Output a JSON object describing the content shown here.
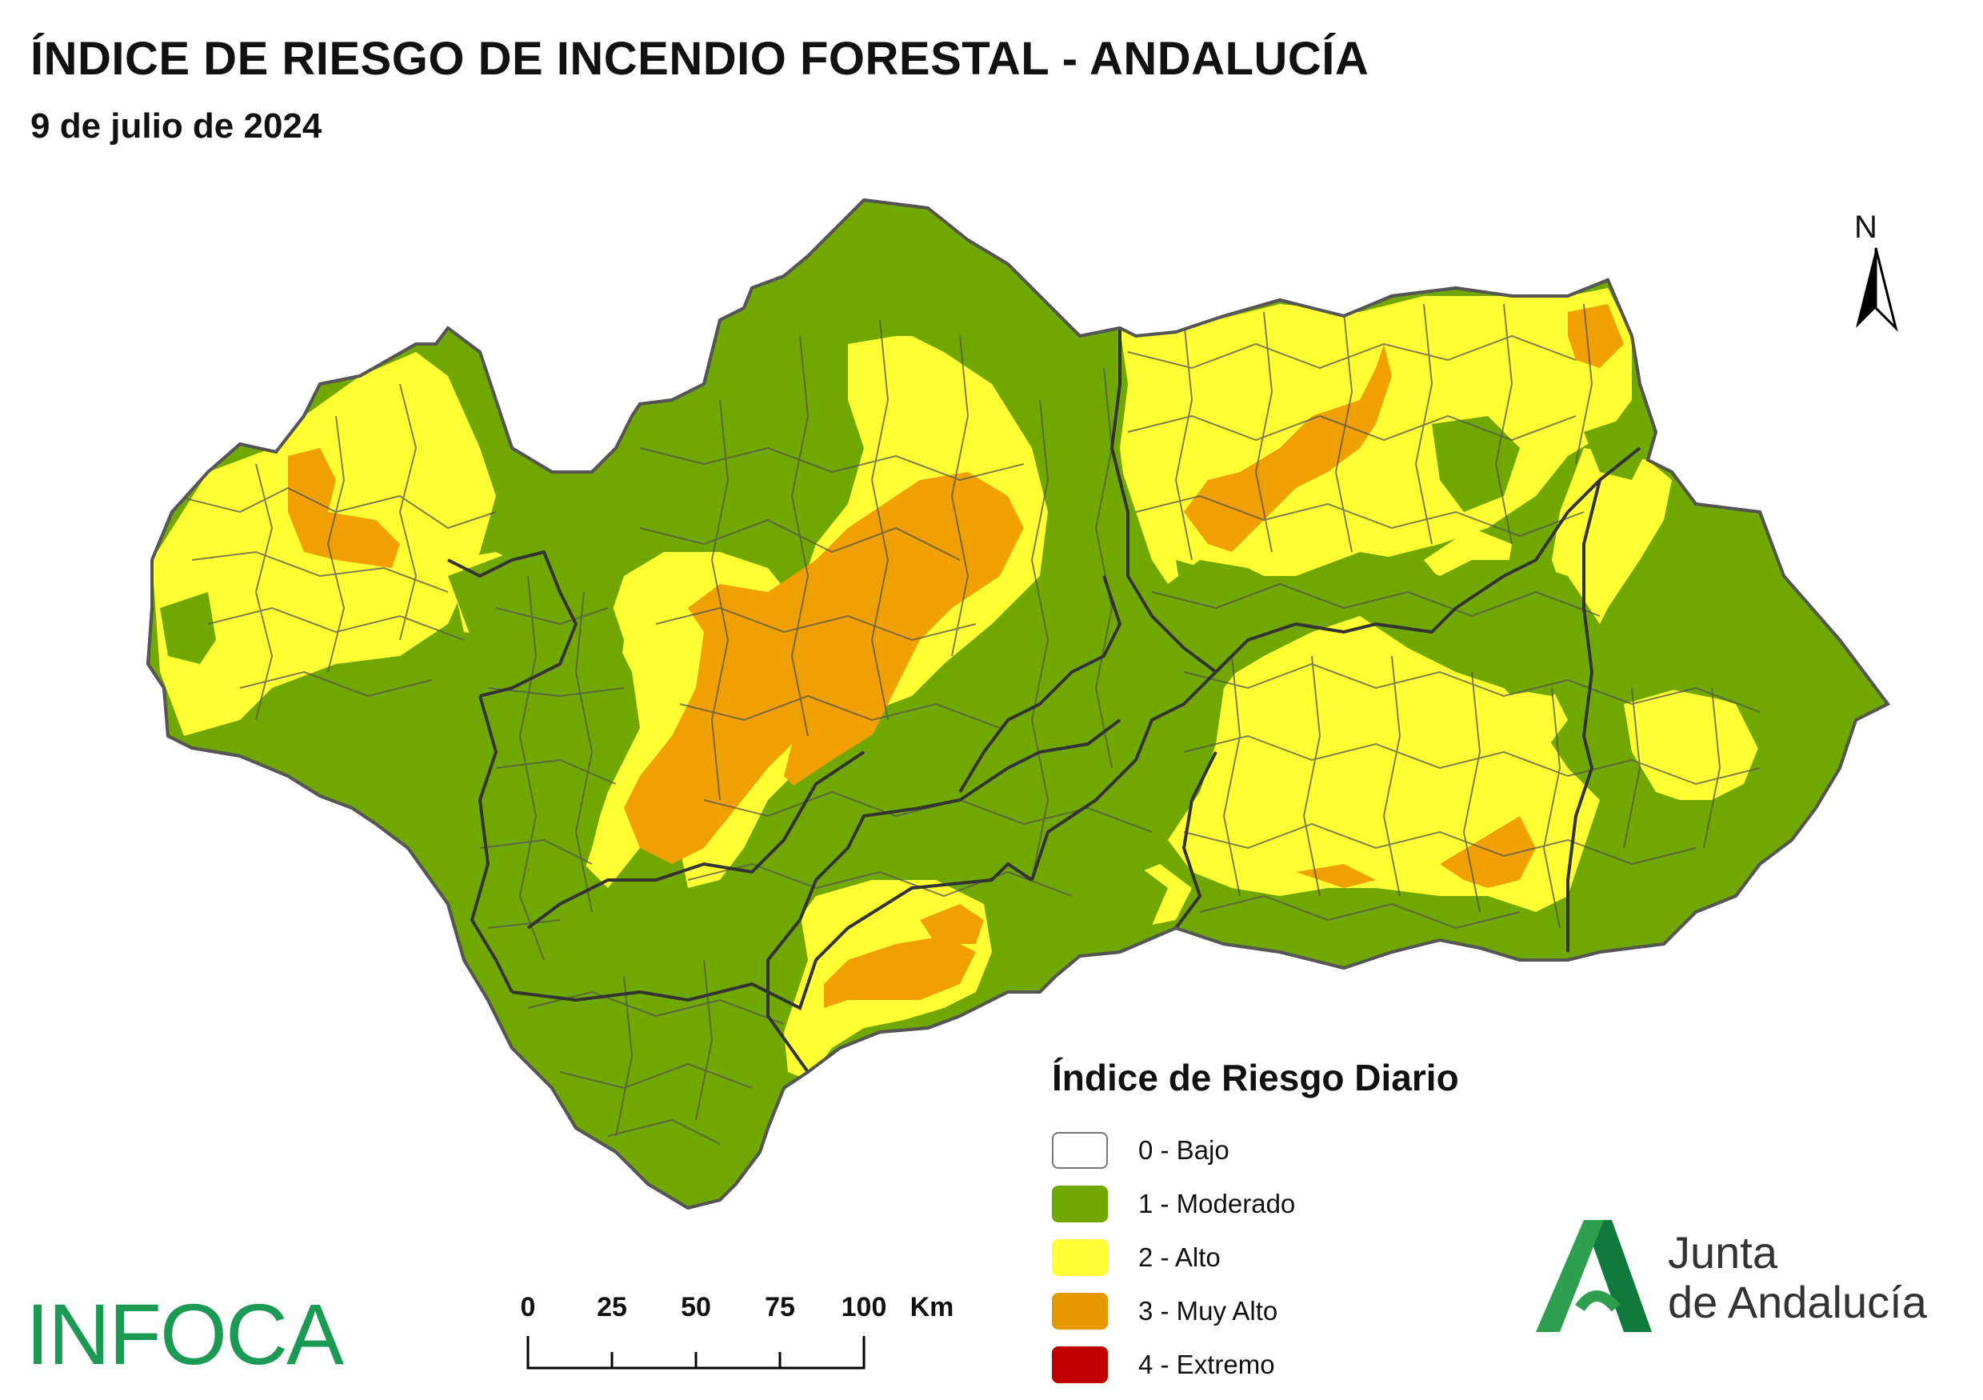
{
  "title": "ÍNDICE DE RIESGO DE INCENDIO FORESTAL - ANDALUCÍA",
  "subtitle": "9 de julio de 2024",
  "north_label": "N",
  "legend": {
    "title": "Índice de Riesgo Diario",
    "items": [
      {
        "label": "0 - Bajo",
        "color": "#ffffff"
      },
      {
        "label": "1 - Moderado",
        "color": "#70a800"
      },
      {
        "label": "2 - Alto",
        "color": "#ffff33"
      },
      {
        "label": "3 - Muy Alto",
        "color": "#e69800"
      },
      {
        "label": "4 - Extremo",
        "color": "#c00000"
      }
    ]
  },
  "scale": {
    "ticks": [
      "0",
      "25",
      "50",
      "75",
      "100"
    ],
    "unit": "Km"
  },
  "logo_infoca": "INFOCA",
  "logo_junta": {
    "line1": "Junta",
    "line2": "de Andalucía"
  },
  "colors": {
    "moderado": "#70a800",
    "alto": "#ffff33",
    "muy_alto": "#f0a000",
    "boundary": "#555555",
    "province": "#333333"
  }
}
